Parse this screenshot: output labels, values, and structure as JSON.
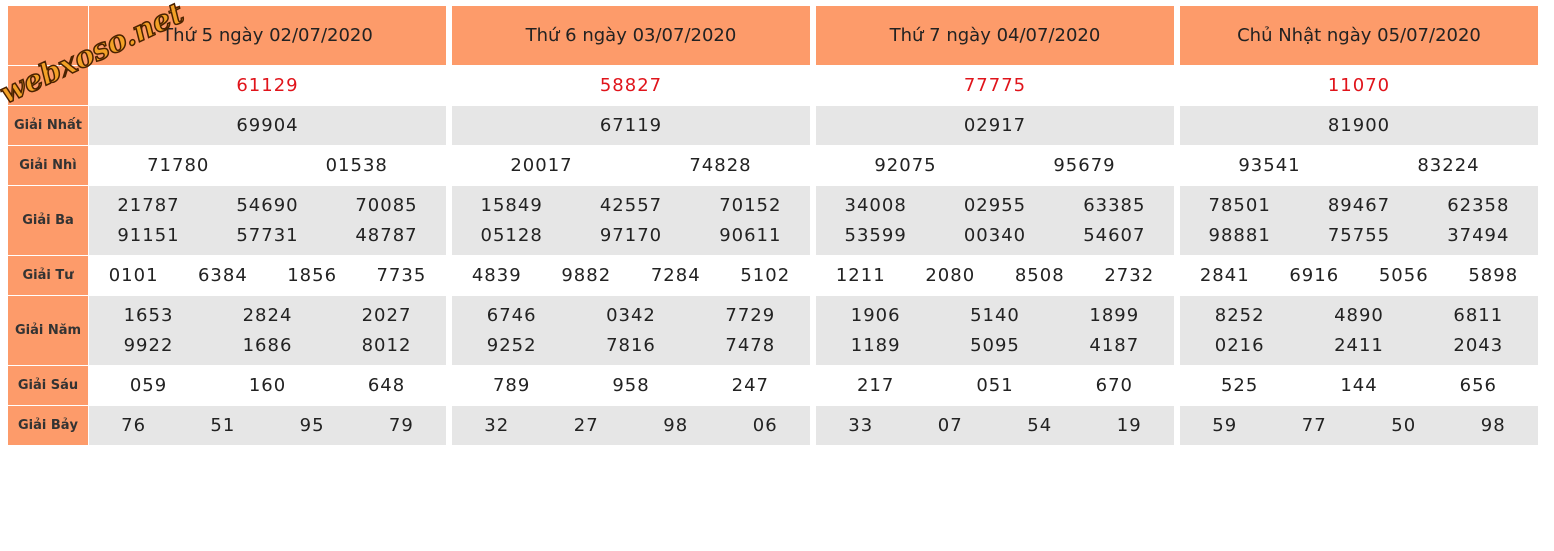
{
  "watermark": "webxoso.net",
  "row_labels": [
    "Giải Nhất",
    "Giải Nhì",
    "Giải Ba",
    "Giải Tư",
    "Giải Năm",
    "Giải Sáu",
    "Giải Bảy"
  ],
  "days": [
    {
      "title": "Thứ 5 ngày 02/07/2020",
      "special": "61129",
      "prizes": [
        [
          "69904"
        ],
        [
          "71780",
          "01538"
        ],
        [
          "21787",
          "54690",
          "70085",
          "91151",
          "57731",
          "48787"
        ],
        [
          "0101",
          "6384",
          "1856",
          "7735"
        ],
        [
          "1653",
          "2824",
          "2027",
          "9922",
          "1686",
          "8012"
        ],
        [
          "059",
          "160",
          "648"
        ],
        [
          "76",
          "51",
          "95",
          "79"
        ]
      ]
    },
    {
      "title": "Thứ 6 ngày 03/07/2020",
      "special": "58827",
      "prizes": [
        [
          "67119"
        ],
        [
          "20017",
          "74828"
        ],
        [
          "15849",
          "42557",
          "70152",
          "05128",
          "97170",
          "90611"
        ],
        [
          "4839",
          "9882",
          "7284",
          "5102"
        ],
        [
          "6746",
          "0342",
          "7729",
          "9252",
          "7816",
          "7478"
        ],
        [
          "789",
          "958",
          "247"
        ],
        [
          "32",
          "27",
          "98",
          "06"
        ]
      ]
    },
    {
      "title": "Thứ 7 ngày 04/07/2020",
      "special": "77775",
      "prizes": [
        [
          "02917"
        ],
        [
          "92075",
          "95679"
        ],
        [
          "34008",
          "02955",
          "63385",
          "53599",
          "00340",
          "54607"
        ],
        [
          "1211",
          "2080",
          "8508",
          "2732"
        ],
        [
          "1906",
          "5140",
          "1899",
          "1189",
          "5095",
          "4187"
        ],
        [
          "217",
          "051",
          "670"
        ],
        [
          "33",
          "07",
          "54",
          "19"
        ]
      ]
    },
    {
      "title": "Chủ Nhật ngày 05/07/2020",
      "special": "11070",
      "prizes": [
        [
          "81900"
        ],
        [
          "93541",
          "83224"
        ],
        [
          "78501",
          "89467",
          "62358",
          "98881",
          "75755",
          "37494"
        ],
        [
          "2841",
          "6916",
          "5056",
          "5898"
        ],
        [
          "8252",
          "4890",
          "6811",
          "0216",
          "2411",
          "2043"
        ],
        [
          "525",
          "144",
          "656"
        ],
        [
          "59",
          "77",
          "50",
          "98"
        ]
      ]
    }
  ]
}
